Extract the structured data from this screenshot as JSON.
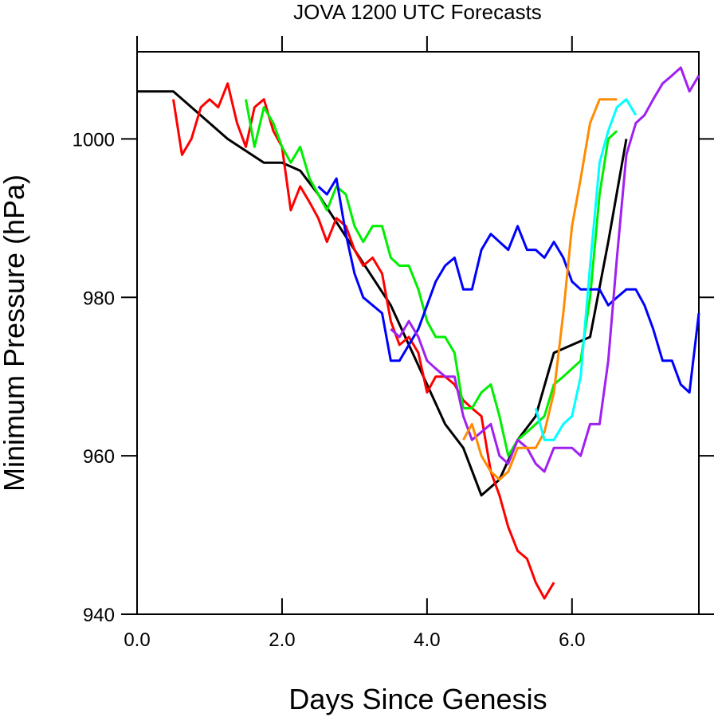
{
  "chart_data": {
    "type": "line",
    "title": "JOVA 1200 UTC Forecasts",
    "xlabel": "Days Since Genesis",
    "ylabel": "Minimum Pressure (hPa)",
    "xlim": [
      0,
      7.75
    ],
    "ylim": [
      940,
      1011
    ],
    "x_ticks": [
      0,
      2,
      4,
      6
    ],
    "x_tick_labels": [
      "0.0",
      "2.0",
      "4.0",
      "6.0"
    ],
    "y_ticks": [
      940,
      960,
      980,
      1000
    ],
    "y_tick_labels": [
      "940",
      "960",
      "980",
      "1000"
    ],
    "grid": false,
    "legend": "none",
    "series": [
      {
        "color": "#000000",
        "points": [
          [
            0,
            1006
          ],
          [
            0.5,
            1006
          ],
          [
            1.25,
            1000
          ],
          [
            1.75,
            997
          ],
          [
            2.0,
            997
          ],
          [
            2.25,
            996
          ],
          [
            2.5,
            993
          ],
          [
            3.0,
            986
          ],
          [
            3.5,
            979
          ],
          [
            4.0,
            969
          ],
          [
            4.25,
            964
          ],
          [
            4.5,
            961
          ],
          [
            4.75,
            955
          ],
          [
            5.0,
            957
          ],
          [
            5.25,
            962
          ],
          [
            5.5,
            965
          ],
          [
            5.75,
            973
          ],
          [
            6.0,
            974
          ],
          [
            6.25,
            975
          ],
          [
            6.5,
            987
          ],
          [
            6.75,
            1000
          ]
        ]
      },
      {
        "color": "#ff0000",
        "points": [
          [
            0.5,
            1005
          ],
          [
            0.62,
            998
          ],
          [
            0.75,
            1000
          ],
          [
            0.88,
            1004
          ],
          [
            1.0,
            1005
          ],
          [
            1.12,
            1004
          ],
          [
            1.25,
            1007
          ],
          [
            1.38,
            1002
          ],
          [
            1.5,
            999
          ],
          [
            1.62,
            1004
          ],
          [
            1.75,
            1005
          ],
          [
            1.88,
            1001
          ],
          [
            2.0,
            999
          ],
          [
            2.12,
            991
          ],
          [
            2.25,
            994
          ],
          [
            2.38,
            992
          ],
          [
            2.5,
            990
          ],
          [
            2.62,
            987
          ],
          [
            2.75,
            990
          ],
          [
            2.88,
            989
          ],
          [
            3.0,
            986
          ],
          [
            3.12,
            984
          ],
          [
            3.25,
            985
          ],
          [
            3.38,
            983
          ],
          [
            3.5,
            977
          ],
          [
            3.62,
            974
          ],
          [
            3.75,
            975
          ],
          [
            3.88,
            973
          ],
          [
            4.0,
            968
          ],
          [
            4.12,
            970
          ],
          [
            4.25,
            970
          ],
          [
            4.38,
            969
          ],
          [
            4.5,
            967
          ],
          [
            4.62,
            966
          ],
          [
            4.75,
            965
          ],
          [
            4.88,
            958
          ],
          [
            5.0,
            955
          ],
          [
            5.12,
            951
          ],
          [
            5.25,
            948
          ],
          [
            5.38,
            947
          ],
          [
            5.5,
            944
          ],
          [
            5.62,
            942
          ],
          [
            5.75,
            944
          ]
        ]
      },
      {
        "color": "#00ee00",
        "points": [
          [
            1.5,
            1005
          ],
          [
            1.62,
            999
          ],
          [
            1.75,
            1004
          ],
          [
            1.88,
            1002
          ],
          [
            2.0,
            999
          ],
          [
            2.12,
            997
          ],
          [
            2.25,
            999
          ],
          [
            2.38,
            995
          ],
          [
            2.5,
            993
          ],
          [
            2.62,
            991
          ],
          [
            2.75,
            994
          ],
          [
            2.88,
            993
          ],
          [
            3.0,
            989
          ],
          [
            3.12,
            987
          ],
          [
            3.25,
            989
          ],
          [
            3.38,
            989
          ],
          [
            3.5,
            985
          ],
          [
            3.62,
            984
          ],
          [
            3.75,
            984
          ],
          [
            3.88,
            981
          ],
          [
            4.0,
            977
          ],
          [
            4.12,
            975
          ],
          [
            4.25,
            975
          ],
          [
            4.38,
            973
          ],
          [
            4.5,
            966
          ],
          [
            4.62,
            966
          ],
          [
            4.75,
            968
          ],
          [
            4.88,
            969
          ],
          [
            5.0,
            965
          ],
          [
            5.12,
            960
          ],
          [
            5.25,
            962
          ],
          [
            5.38,
            963
          ],
          [
            5.5,
            964
          ],
          [
            5.62,
            965
          ],
          [
            5.75,
            969
          ],
          [
            5.88,
            970
          ],
          [
            6.0,
            971
          ],
          [
            6.12,
            972
          ],
          [
            6.25,
            980
          ],
          [
            6.38,
            993
          ],
          [
            6.5,
            1000
          ],
          [
            6.62,
            1001
          ]
        ]
      },
      {
        "color": "#0000ff",
        "points": [
          [
            2.5,
            994
          ],
          [
            2.62,
            993
          ],
          [
            2.75,
            995
          ],
          [
            2.88,
            988
          ],
          [
            3.0,
            983
          ],
          [
            3.12,
            980
          ],
          [
            3.25,
            979
          ],
          [
            3.38,
            978
          ],
          [
            3.5,
            972
          ],
          [
            3.62,
            972
          ],
          [
            3.75,
            974
          ],
          [
            3.88,
            976
          ],
          [
            4.0,
            979
          ],
          [
            4.12,
            982
          ],
          [
            4.25,
            984
          ],
          [
            4.38,
            985
          ],
          [
            4.5,
            981
          ],
          [
            4.62,
            981
          ],
          [
            4.75,
            986
          ],
          [
            4.88,
            988
          ],
          [
            5.0,
            987
          ],
          [
            5.12,
            986
          ],
          [
            5.25,
            989
          ],
          [
            5.38,
            986
          ],
          [
            5.5,
            986
          ],
          [
            5.62,
            985
          ],
          [
            5.75,
            987
          ],
          [
            5.88,
            985
          ],
          [
            6.0,
            982
          ],
          [
            6.12,
            981
          ],
          [
            6.25,
            981
          ],
          [
            6.38,
            981
          ],
          [
            6.5,
            979
          ],
          [
            6.62,
            980
          ],
          [
            6.75,
            981
          ],
          [
            6.88,
            981
          ],
          [
            7.0,
            979
          ],
          [
            7.12,
            976
          ],
          [
            7.25,
            972
          ],
          [
            7.38,
            972
          ],
          [
            7.5,
            969
          ],
          [
            7.62,
            968
          ],
          [
            7.75,
            978
          ]
        ]
      },
      {
        "color": "#a020f0",
        "points": [
          [
            3.5,
            976
          ],
          [
            3.62,
            975
          ],
          [
            3.75,
            977
          ],
          [
            3.88,
            975
          ],
          [
            4.0,
            972
          ],
          [
            4.12,
            971
          ],
          [
            4.25,
            970
          ],
          [
            4.38,
            970
          ],
          [
            4.5,
            965
          ],
          [
            4.62,
            962
          ],
          [
            4.75,
            963
          ],
          [
            4.88,
            964
          ],
          [
            5.0,
            960
          ],
          [
            5.12,
            959
          ],
          [
            5.25,
            962
          ],
          [
            5.38,
            961
          ],
          [
            5.5,
            959
          ],
          [
            5.62,
            958
          ],
          [
            5.75,
            961
          ],
          [
            5.88,
            961
          ],
          [
            6.0,
            961
          ],
          [
            6.12,
            960
          ],
          [
            6.25,
            964
          ],
          [
            6.38,
            964
          ],
          [
            6.5,
            972
          ],
          [
            6.62,
            985
          ],
          [
            6.75,
            998
          ],
          [
            6.88,
            1002
          ],
          [
            7.0,
            1003
          ],
          [
            7.12,
            1005
          ],
          [
            7.25,
            1007
          ],
          [
            7.38,
            1008
          ],
          [
            7.5,
            1009
          ],
          [
            7.62,
            1006
          ],
          [
            7.75,
            1008
          ]
        ]
      },
      {
        "color": "#ff8c00",
        "points": [
          [
            4.5,
            962
          ],
          [
            4.62,
            964
          ],
          [
            4.75,
            960
          ],
          [
            4.88,
            958
          ],
          [
            5.0,
            957
          ],
          [
            5.12,
            958
          ],
          [
            5.25,
            961
          ],
          [
            5.38,
            961
          ],
          [
            5.5,
            961
          ],
          [
            5.62,
            963
          ],
          [
            5.75,
            968
          ],
          [
            5.88,
            978
          ],
          [
            6.0,
            989
          ],
          [
            6.12,
            995
          ],
          [
            6.25,
            1002
          ],
          [
            6.38,
            1005
          ],
          [
            6.5,
            1005
          ],
          [
            6.62,
            1005
          ]
        ]
      },
      {
        "color": "#00ffff",
        "points": [
          [
            5.5,
            966
          ],
          [
            5.62,
            962
          ],
          [
            5.75,
            962
          ],
          [
            5.88,
            964
          ],
          [
            6.0,
            965
          ],
          [
            6.12,
            970
          ],
          [
            6.25,
            984
          ],
          [
            6.38,
            997
          ],
          [
            6.5,
            1001
          ],
          [
            6.62,
            1004
          ],
          [
            6.75,
            1005
          ],
          [
            6.88,
            1003
          ]
        ]
      }
    ]
  }
}
